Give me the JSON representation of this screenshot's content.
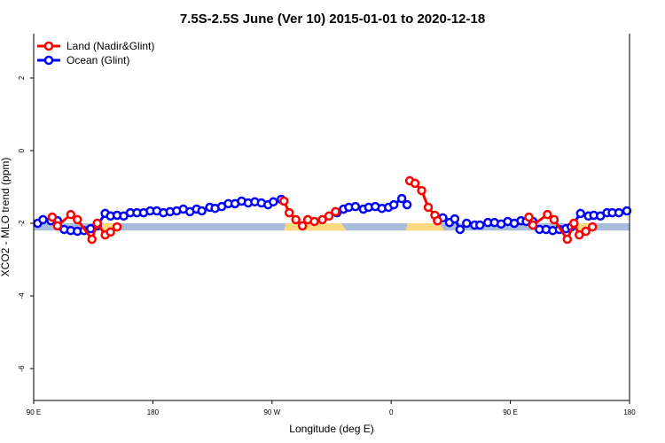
{
  "chart_data": {
    "type": "line",
    "title": "7.5S-2.5S June (Ver 10)   2015-01-01 to 2020-12-18",
    "xlabel": "Longitude (deg E)",
    "ylabel": "XCO2 - MLO trend (ppm)",
    "x_units": "degrees east of 90E (0-450, wraps past 180)",
    "xlim": [
      0,
      450
    ],
    "ylim": [
      -6.8,
      3.2
    ],
    "x_ticks": [
      {
        "value": 0,
        "label": "90 E"
      },
      {
        "value": 90,
        "label": "180"
      },
      {
        "value": 180,
        "label": "90 W"
      },
      {
        "value": 270,
        "label": "0"
      },
      {
        "value": 360,
        "label": "90 E"
      },
      {
        "value": 450,
        "label": "180"
      }
    ],
    "y_ticks": [
      {
        "value": 2,
        "label": "2"
      },
      {
        "value": 0,
        "label": "0"
      },
      {
        "value": -2,
        "label": "-2"
      },
      {
        "value": -4,
        "label": "-4"
      },
      {
        "value": -6,
        "label": "-6"
      }
    ],
    "legend_position": "top-left",
    "reference_band": {
      "range": [
        -2.2,
        -2.0
      ],
      "color": "#a7bddb",
      "land_color": "#fdd97f",
      "land_segments": [
        [
          48,
          62
        ],
        [
          189,
          235
        ],
        [
          281,
          309
        ],
        [
          408,
          422
        ]
      ]
    },
    "series": [
      {
        "name": "Land (Nadir&Glint)",
        "color": "#ff0000",
        "segments": [
          [
            [
              14,
              -1.83
            ],
            [
              18,
              -2.07
            ],
            [
              28,
              -1.76
            ],
            [
              33,
              -1.9
            ],
            [
              44,
              -2.44
            ],
            [
              48,
              -2.0
            ],
            [
              54,
              -2.32
            ],
            [
              58,
              -2.24
            ],
            [
              63,
              -2.1
            ]
          ],
          [
            [
              189,
              -1.39
            ],
            [
              193,
              -1.71
            ],
            [
              198,
              -1.9
            ],
            [
              203,
              -2.07
            ],
            [
              207,
              -1.9
            ],
            [
              212,
              -1.95
            ],
            [
              218,
              -1.9
            ],
            [
              223,
              -1.8
            ],
            [
              228,
              -1.68
            ]
          ],
          [
            [
              284,
              -0.83
            ],
            [
              288,
              -0.9
            ],
            [
              293,
              -1.1
            ],
            [
              298,
              -1.56
            ],
            [
              303,
              -1.78
            ],
            [
              305,
              -1.93
            ]
          ],
          [
            [
              374,
              -1.83
            ],
            [
              377,
              -2.05
            ],
            [
              388,
              -1.76
            ],
            [
              393,
              -1.9
            ],
            [
              403,
              -2.44
            ],
            [
              408,
              -2.0
            ],
            [
              412,
              -2.32
            ],
            [
              417,
              -2.22
            ],
            [
              422,
              -2.1
            ]
          ]
        ]
      },
      {
        "name": "Ocean (Glint)",
        "color": "#0000ff",
        "segments": [
          [
            [
              3,
              -2.0
            ],
            [
              7,
              -1.9
            ],
            [
              13,
              -1.93
            ],
            [
              18,
              -1.93
            ],
            [
              23,
              -2.17
            ],
            [
              28,
              -2.2
            ],
            [
              33,
              -2.22
            ],
            [
              38,
              -2.2
            ],
            [
              43,
              -2.15
            ],
            [
              48,
              -2.07
            ],
            [
              54,
              -1.73
            ],
            [
              58,
              -1.8
            ],
            [
              63,
              -1.78
            ],
            [
              68,
              -1.8
            ],
            [
              73,
              -1.71
            ],
            [
              78,
              -1.71
            ],
            [
              83,
              -1.71
            ],
            [
              88,
              -1.66
            ],
            [
              93,
              -1.66
            ],
            [
              98,
              -1.71
            ],
            [
              103,
              -1.68
            ],
            [
              108,
              -1.66
            ],
            [
              113,
              -1.61
            ],
            [
              118,
              -1.68
            ],
            [
              123,
              -1.61
            ],
            [
              127,
              -1.66
            ],
            [
              133,
              -1.56
            ],
            [
              137,
              -1.59
            ],
            [
              142,
              -1.54
            ],
            [
              147,
              -1.46
            ],
            [
              152,
              -1.46
            ],
            [
              157,
              -1.39
            ],
            [
              162,
              -1.44
            ],
            [
              167,
              -1.41
            ],
            [
              172,
              -1.44
            ],
            [
              177,
              -1.49
            ],
            [
              181,
              -1.41
            ],
            [
              187,
              -1.34
            ]
          ],
          [
            [
              229,
              -1.71
            ],
            [
              234,
              -1.61
            ],
            [
              238,
              -1.56
            ],
            [
              243,
              -1.54
            ],
            [
              249,
              -1.61
            ],
            [
              253,
              -1.56
            ],
            [
              258,
              -1.54
            ],
            [
              263,
              -1.59
            ],
            [
              268,
              -1.56
            ],
            [
              272,
              -1.49
            ],
            [
              278,
              -1.32
            ],
            [
              282,
              -1.49
            ]
          ],
          [
            [
              305,
              -1.93
            ],
            [
              309,
              -1.85
            ],
            [
              314,
              -1.98
            ],
            [
              318,
              -1.88
            ],
            [
              322,
              -2.17
            ],
            [
              327,
              -2.0
            ],
            [
              333,
              -2.05
            ],
            [
              337,
              -2.05
            ],
            [
              343,
              -1.98
            ],
            [
              348,
              -1.98
            ],
            [
              353,
              -2.02
            ],
            [
              358,
              -1.95
            ],
            [
              363,
              -2.0
            ],
            [
              368,
              -1.93
            ],
            [
              372,
              -1.95
            ],
            [
              377,
              -1.95
            ],
            [
              382,
              -2.17
            ],
            [
              387,
              -2.17
            ],
            [
              392,
              -2.2
            ],
            [
              397,
              -2.17
            ],
            [
              402,
              -2.15
            ],
            [
              406,
              -2.1
            ],
            [
              413,
              -1.73
            ],
            [
              419,
              -1.8
            ],
            [
              423,
              -1.78
            ],
            [
              428,
              -1.8
            ],
            [
              433,
              -1.71
            ],
            [
              437,
              -1.71
            ],
            [
              442,
              -1.71
            ],
            [
              448,
              -1.66
            ]
          ]
        ]
      }
    ]
  }
}
